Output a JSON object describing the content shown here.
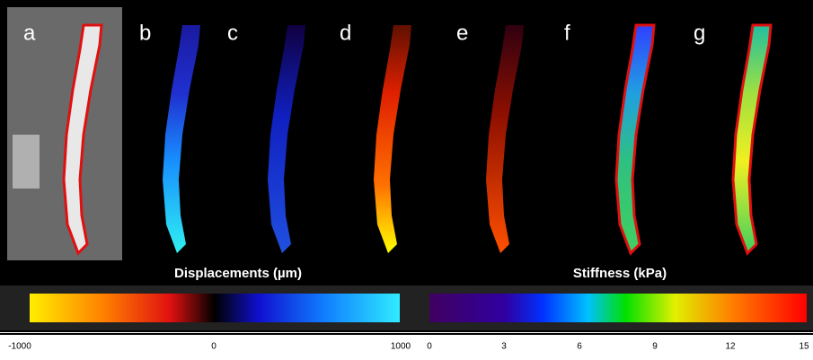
{
  "panels": [
    {
      "label": "a"
    },
    {
      "label": "b"
    },
    {
      "label": "c"
    },
    {
      "label": "d"
    },
    {
      "label": "e"
    },
    {
      "label": "f"
    },
    {
      "label": "g"
    }
  ],
  "colorbars": [
    {
      "title": "Displacements (µm)",
      "ticks": [
        "-1000",
        "0",
        "1000"
      ]
    },
    {
      "title": "Stiffness (kPa)",
      "ticks": [
        "0",
        "3",
        "6",
        "9",
        "12",
        "15"
      ]
    }
  ]
}
